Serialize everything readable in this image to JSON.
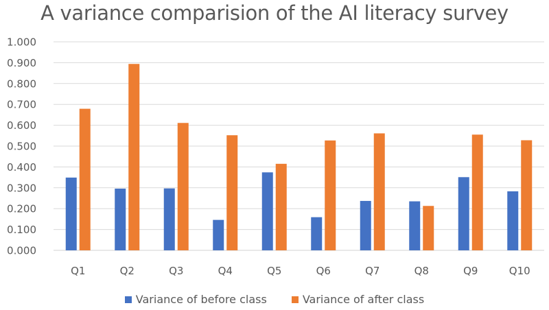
{
  "chart_data": {
    "type": "bar",
    "title": "A variance comparision of the AI literacy survey",
    "xlabel": "",
    "ylabel": "",
    "categories": [
      "Q1",
      "Q2",
      "Q3",
      "Q4",
      "Q5",
      "Q6",
      "Q7",
      "Q8",
      "Q9",
      "Q10"
    ],
    "series": [
      {
        "name": "Variance of before class",
        "color": "#4472C4",
        "values": [
          0.349,
          0.296,
          0.297,
          0.146,
          0.374,
          0.159,
          0.237,
          0.235,
          0.351,
          0.283
        ]
      },
      {
        "name": "Variance of after class",
        "color": "#ED7D31",
        "values": [
          0.679,
          0.894,
          0.611,
          0.552,
          0.415,
          0.527,
          0.561,
          0.213,
          0.555,
          0.528
        ]
      }
    ],
    "ylim": [
      0,
      1.0
    ],
    "yticks": [
      "0.000",
      "0.100",
      "0.200",
      "0.300",
      "0.400",
      "0.500",
      "0.600",
      "0.700",
      "0.800",
      "0.900",
      "1.000"
    ],
    "grid": true,
    "legend_position": "bottom"
  },
  "legend": {
    "items": [
      {
        "label": "Variance of before class",
        "color": "#4472C4"
      },
      {
        "label": "Variance of after class",
        "color": "#ED7D31"
      }
    ]
  }
}
